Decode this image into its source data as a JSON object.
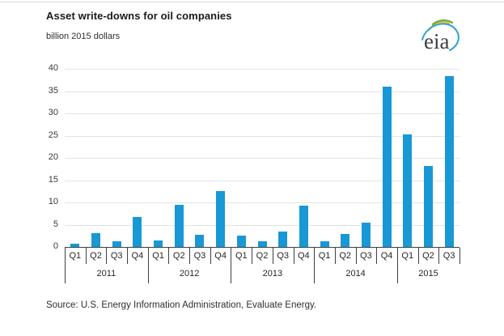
{
  "header": {
    "title": "Asset write-downs for oil companies",
    "subtitle": "billion 2015 dollars",
    "logo_text": "eia"
  },
  "chart_data": {
    "type": "bar",
    "title": "Asset write-downs for oil companies",
    "units_label": "billion 2015 dollars",
    "bar_color": "#1898d5",
    "grid": true,
    "legend_position": "none",
    "ylim": [
      0,
      40
    ],
    "yticks": [
      0,
      5,
      10,
      15,
      20,
      25,
      30,
      35,
      40
    ],
    "groups": [
      {
        "year": "2011",
        "quarters": [
          "Q1",
          "Q2",
          "Q3",
          "Q4"
        ],
        "values": [
          0.8,
          3.0,
          1.3,
          6.8
        ]
      },
      {
        "year": "2012",
        "quarters": [
          "Q1",
          "Q2",
          "Q3",
          "Q4"
        ],
        "values": [
          1.5,
          9.5,
          2.8,
          12.6
        ]
      },
      {
        "year": "2013",
        "quarters": [
          "Q1",
          "Q2",
          "Q3",
          "Q4"
        ],
        "values": [
          2.5,
          1.2,
          3.5,
          9.2
        ]
      },
      {
        "year": "2014",
        "quarters": [
          "Q1",
          "Q2",
          "Q3",
          "Q4"
        ],
        "values": [
          1.2,
          2.9,
          5.5,
          36.0
        ]
      },
      {
        "year": "2015",
        "quarters": [
          "Q1",
          "Q2",
          "Q3"
        ],
        "values": [
          25.3,
          18.2,
          38.4
        ]
      }
    ]
  },
  "footer": {
    "source": "Source:  U.S. Energy Information Administration, Evaluate Energy."
  }
}
